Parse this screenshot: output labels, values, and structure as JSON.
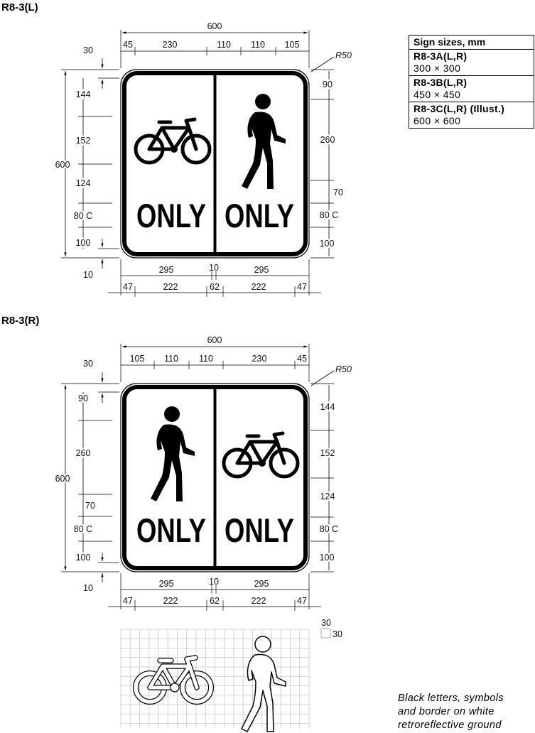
{
  "titles": {
    "left": "R8-3(L)",
    "right": "R8-3(R)"
  },
  "sign_text": {
    "only": "ONLY"
  },
  "radius_label": "R50",
  "dims_left": {
    "top_overall": "600",
    "top_45": "45",
    "top_230": "230",
    "top_110a": "110",
    "top_110b": "110",
    "top_105": "105",
    "left_30": "30",
    "left_144": "144",
    "left_152": "152",
    "left_124": "124",
    "left_80c": "80 C",
    "left_100": "100",
    "left_10": "10",
    "left_600": "600",
    "right_90": "90",
    "right_260": "260",
    "right_70": "70",
    "right_80c": "80 C",
    "right_100": "100",
    "bot_295a": "295",
    "bot_10": "10",
    "bot_295b": "295",
    "bot_47a": "47",
    "bot_222a": "222",
    "bot_62": "62",
    "bot_222b": "222",
    "bot_47b": "47"
  },
  "dims_right": {
    "top_overall": "600",
    "top_105": "105",
    "top_110a": "110",
    "top_110b": "110",
    "top_230": "230",
    "top_45": "45",
    "left_30": "30",
    "left_90": "90",
    "left_260": "260",
    "left_70": "70",
    "left_80c": "80 C",
    "left_100": "100",
    "left_10": "10",
    "left_600": "600",
    "right_144": "144",
    "right_152": "152",
    "right_124": "124",
    "right_80c": "80 C",
    "right_100": "100",
    "bot_295a": "295",
    "bot_10": "10",
    "bot_295b": "295",
    "bot_47a": "47",
    "bot_222a": "222",
    "bot_62": "62",
    "bot_222b": "222",
    "bot_47b": "47"
  },
  "grid_labels": {
    "a": "30",
    "b": "30"
  },
  "sizes_table": {
    "header": "Sign sizes, mm",
    "rows": [
      {
        "code": "R8-3A(L,R)",
        "size": "300 × 300"
      },
      {
        "code": "R8-3B(L,R)",
        "size": "450 × 450"
      },
      {
        "code": "R8-3C(L,R) (Illust.)",
        "size": "600 × 600"
      }
    ]
  },
  "note": {
    "line1": "Black letters, symbols",
    "line2": "and border on white",
    "line3": "retroreflective ground"
  }
}
